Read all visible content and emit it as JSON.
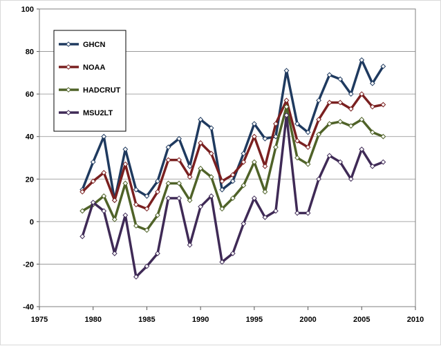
{
  "chart_data": {
    "type": "line",
    "title": "",
    "xlabel": "",
    "ylabel": "",
    "xlim": [
      1975,
      2010
    ],
    "ylim": [
      -40,
      100
    ],
    "xticks": [
      1975,
      1980,
      1985,
      1990,
      1995,
      2000,
      2005,
      2010
    ],
    "yticks": [
      -40,
      -20,
      0,
      20,
      40,
      60,
      80,
      100
    ],
    "grid": "horizontal",
    "legend": "top-left",
    "x": [
      1979,
      1980,
      1981,
      1982,
      1983,
      1984,
      1985,
      1986,
      1987,
      1988,
      1989,
      1990,
      1991,
      1992,
      1993,
      1994,
      1995,
      1996,
      1997,
      1998,
      1999,
      2000,
      2001,
      2002,
      2003,
      2004,
      2005,
      2006,
      2007
    ],
    "series": [
      {
        "name": "GHCN",
        "color": "#1f3a5f",
        "values": [
          15,
          28,
          40,
          10,
          34,
          15,
          12,
          19,
          35,
          39,
          26,
          48,
          44,
          15,
          19,
          32,
          46,
          39,
          40,
          71,
          46,
          42,
          57,
          69,
          67,
          60,
          76,
          65,
          73
        ]
      },
      {
        "name": "NOAA",
        "color": "#7a2020",
        "values": [
          14,
          19,
          23,
          10,
          27,
          8,
          6,
          14,
          29,
          29,
          21,
          37,
          32,
          19,
          22,
          28,
          40,
          26,
          46,
          57,
          38,
          35,
          48,
          56,
          56,
          53,
          60,
          54,
          55
        ]
      },
      {
        "name": "HADCRUT",
        "color": "#4f6228",
        "values": [
          5,
          8,
          12,
          1,
          18,
          -2,
          -4,
          3,
          18,
          18,
          10,
          25,
          21,
          6,
          11,
          17,
          28,
          14,
          35,
          54,
          30,
          27,
          41,
          46,
          47,
          45,
          48,
          42,
          40
        ]
      },
      {
        "name": "MSU2LT",
        "color": "#3f2a56",
        "values": [
          -7,
          9,
          5,
          -15,
          3,
          -26,
          -21,
          -15,
          11,
          11,
          -11,
          7,
          12,
          -19,
          -15,
          -1,
          11,
          2,
          5,
          50,
          4,
          4,
          20,
          31,
          28,
          20,
          34,
          26,
          28
        ]
      }
    ]
  }
}
